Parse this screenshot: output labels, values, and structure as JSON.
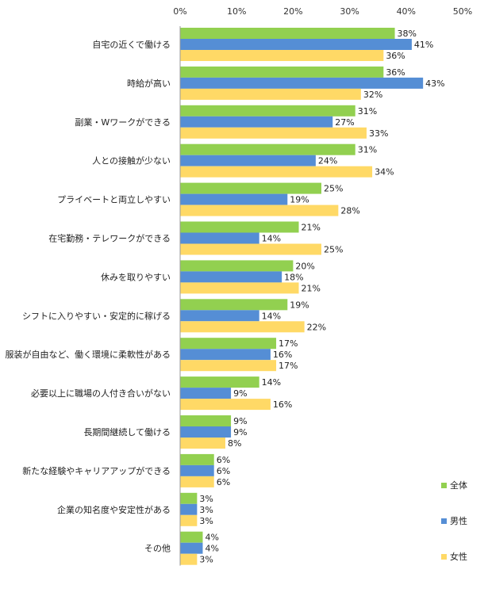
{
  "chart_data": {
    "type": "bar",
    "orientation": "horizontal",
    "title": "",
    "xlabel": "",
    "ylabel": "",
    "xlim": [
      0,
      50
    ],
    "x_ticks": [
      "0%",
      "10%",
      "20%",
      "30%",
      "40%",
      "50%"
    ],
    "x_axis_position": "top",
    "grid": false,
    "legend_position": "bottom-right",
    "value_suffix": "%",
    "categories": [
      "自宅の近くで働ける",
      "時給が高い",
      "副業・Wワークができる",
      "人との接触が少ない",
      "プライベートと両立しやすい",
      "在宅勤務・テレワークができる",
      "休みを取りやすい",
      "シフトに入りやすい・安定的に稼げる",
      "服装が自由など、働く環境に柔軟性がある",
      "必要以上に職場の人付き合いがない",
      "長期間継続して働ける",
      "新たな経験やキャリアアップができる",
      "企業の知名度や安定性がある",
      "その他"
    ],
    "series": [
      {
        "name": "全体",
        "color": "#92D050",
        "values": [
          38,
          36,
          31,
          31,
          25,
          21,
          20,
          19,
          17,
          14,
          9,
          6,
          3,
          4
        ]
      },
      {
        "name": "男性",
        "color": "#558ED5",
        "values": [
          41,
          43,
          27,
          24,
          19,
          14,
          18,
          14,
          16,
          9,
          9,
          6,
          3,
          4
        ]
      },
      {
        "name": "女性",
        "color": "#FFD966",
        "values": [
          36,
          32,
          33,
          34,
          28,
          25,
          21,
          22,
          17,
          16,
          8,
          6,
          3,
          3
        ]
      }
    ]
  }
}
